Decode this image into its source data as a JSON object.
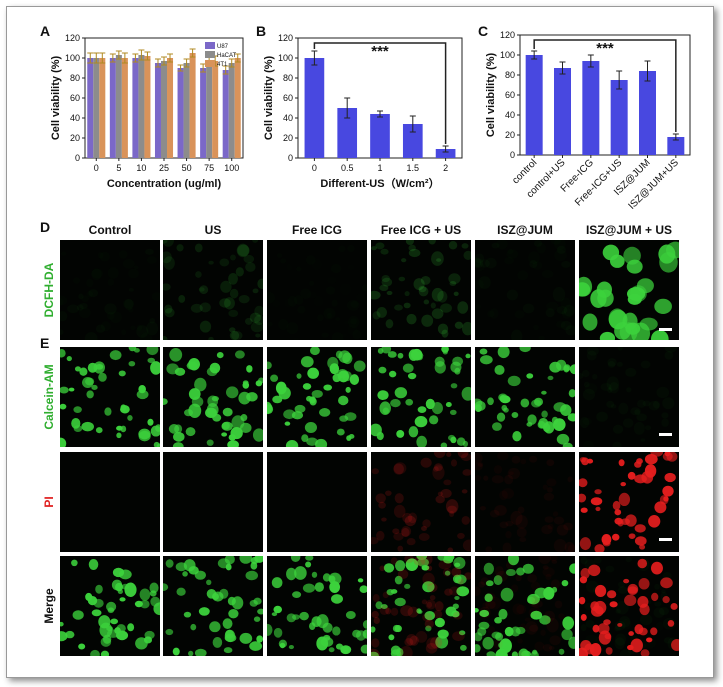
{
  "chart_data": [
    {
      "type": "bar",
      "panel_label": "A",
      "x_label": "Concentration (ug/ml)",
      "y_label": "Cell viability (%)",
      "categories": [
        "0",
        "5",
        "10",
        "25",
        "50",
        "75",
        "100"
      ],
      "series": [
        {
          "name": "U87",
          "color": "#7b68c8",
          "values": [
            100,
            100,
            100,
            95,
            90,
            90,
            88
          ],
          "errors": [
            5,
            4,
            4,
            4,
            3,
            4,
            4
          ]
        },
        {
          "name": "HaCAT",
          "color": "#8c8c8c",
          "values": [
            100,
            103,
            103,
            97,
            95,
            97,
            95
          ],
          "errors": [
            5,
            4,
            5,
            4,
            4,
            4,
            4
          ]
        },
        {
          "name": "4T1",
          "color": "#d9935a",
          "values": [
            100,
            100,
            102,
            100,
            105,
            97,
            100
          ],
          "errors": [
            5,
            5,
            4,
            4,
            4,
            5,
            4
          ]
        }
      ],
      "ylim": [
        0,
        120
      ],
      "yticks": [
        0,
        20,
        40,
        60,
        80,
        100,
        120
      ]
    },
    {
      "type": "bar",
      "panel_label": "B",
      "x_label": "Different-US（W/cm²）",
      "y_label": "Cell viability (%)",
      "annotation": "***",
      "categories": [
        "0",
        "0.5",
        "1",
        "1.5",
        "2"
      ],
      "color": "#4848e0",
      "values": [
        100,
        50,
        44,
        34,
        9
      ],
      "errors": [
        7,
        10,
        3,
        8,
        3
      ],
      "ylim": [
        0,
        120
      ],
      "yticks": [
        0,
        20,
        40,
        60,
        80,
        100,
        120
      ]
    },
    {
      "type": "bar",
      "panel_label": "C",
      "y_label": "Cell viability (%)",
      "annotation": "***",
      "categories": [
        "control",
        "control+US",
        "Free-ICG",
        "Free-ICG+US",
        "ISZ@JUM",
        "ISZ@JUM+US"
      ],
      "color": "#4848e0",
      "values": [
        100,
        87,
        94,
        75,
        84,
        18
      ],
      "errors": [
        4,
        6,
        6,
        9,
        10,
        3
      ],
      "ylim": [
        0,
        120
      ],
      "yticks": [
        0,
        20,
        40,
        60,
        80,
        100,
        120
      ]
    }
  ],
  "images": {
    "panel_labels": [
      "D",
      "E"
    ],
    "columns": [
      "Control",
      "US",
      "Free ICG",
      "Free ICG + US",
      "ISZ@JUM",
      "ISZ@JUM + US"
    ],
    "rows": [
      "DCFH-DA",
      "Calcein-AM",
      "PI",
      "Merge"
    ]
  }
}
